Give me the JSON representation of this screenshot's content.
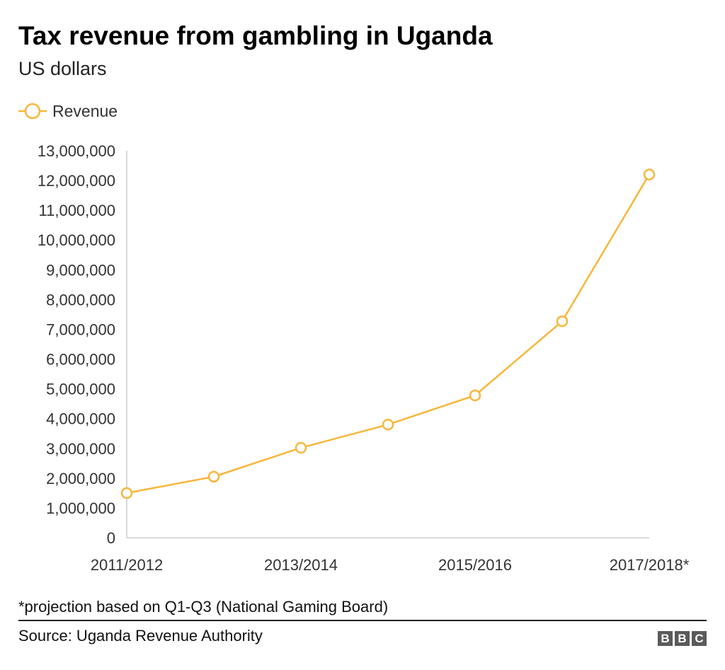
{
  "header": {
    "title": "Tax revenue from gambling in Uganda",
    "subtitle": "US dollars"
  },
  "footer": {
    "note": "*projection based on Q1-Q3 (National Gaming Board)",
    "source": "Source: Uganda Revenue Authority",
    "logo": "BBC"
  },
  "chart_data": {
    "type": "line",
    "title": "Tax revenue from gambling in Uganda",
    "subtitle": "US dollars",
    "categories": [
      "2011/2012",
      "",
      "2013/2014",
      "",
      "2015/2016",
      "",
      "2017/2018*"
    ],
    "series": [
      {
        "name": "Revenue",
        "color": "#f8b63a",
        "marker": "hollow-circle",
        "values": [
          1500000,
          2050000,
          3020000,
          3800000,
          4780000,
          7270000,
          12200000
        ]
      }
    ],
    "ylim": [
      0,
      13000000
    ],
    "yticks": [
      0,
      1000000,
      2000000,
      3000000,
      4000000,
      5000000,
      6000000,
      7000000,
      8000000,
      9000000,
      10000000,
      11000000,
      12000000,
      13000000
    ],
    "ytick_labels": [
      "0",
      "1,000,000",
      "2,000,000",
      "3,000,000",
      "4,000,000",
      "5,000,000",
      "6,000,000",
      "7,000,000",
      "8,000,000",
      "9,000,000",
      "10,000,000",
      "11,000,000",
      "12,000,000",
      "13,000,000"
    ],
    "grid": false,
    "legend": "top-left"
  }
}
